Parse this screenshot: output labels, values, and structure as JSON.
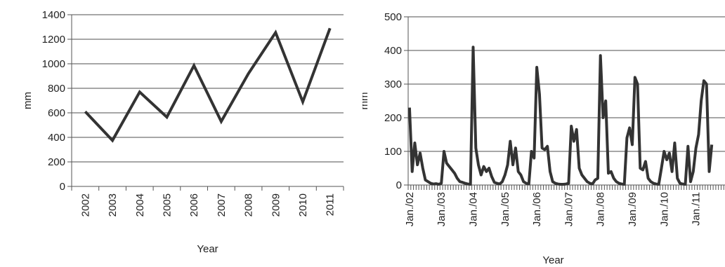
{
  "colors": {
    "line": "#333333",
    "grid": "#8a8a8a",
    "axis": "#555555",
    "text": "#222222",
    "background": "#ffffff"
  },
  "chart_data": [
    {
      "type": "line",
      "title": "",
      "xlabel": "Year",
      "ylabel": "mm",
      "categories": [
        "2002",
        "2003",
        "2004",
        "2005",
        "2006",
        "2007",
        "2008",
        "2009",
        "2010",
        "2011"
      ],
      "series": [
        {
          "values": [
            610,
            375,
            770,
            565,
            985,
            530,
            920,
            1255,
            690,
            1290
          ]
        }
      ],
      "ylim": [
        0,
        1400
      ],
      "yticks": [
        0,
        200,
        400,
        600,
        800,
        1000,
        1200,
        1400
      ],
      "grid": true,
      "legend": "none"
    },
    {
      "type": "line",
      "title": "",
      "xlabel": "Year",
      "ylabel": "mm",
      "x_tick_labels": [
        "Jan./02",
        "Jan./03",
        "Jan./04",
        "Jan./05",
        "Jan./06",
        "Jan./07",
        "Jan./08",
        "Jan./09",
        "Jan./10",
        "Jan./11"
      ],
      "x_start": "2002-01",
      "frequency": "monthly",
      "series": [
        {
          "values": [
            230,
            40,
            125,
            60,
            95,
            50,
            15,
            10,
            5,
            3,
            4,
            2,
            5,
            100,
            65,
            55,
            45,
            35,
            20,
            10,
            8,
            5,
            3,
            2,
            410,
            110,
            60,
            30,
            55,
            40,
            50,
            25,
            8,
            5,
            3,
            10,
            30,
            60,
            130,
            60,
            110,
            40,
            30,
            10,
            5,
            3,
            100,
            80,
            350,
            270,
            110,
            105,
            115,
            40,
            10,
            5,
            3,
            2,
            2,
            3,
            5,
            175,
            130,
            165,
            50,
            30,
            20,
            10,
            5,
            3,
            15,
            20,
            385,
            200,
            250,
            35,
            40,
            20,
            10,
            5,
            3,
            2,
            140,
            170,
            120,
            320,
            300,
            50,
            45,
            70,
            20,
            10,
            5,
            3,
            2,
            50,
            100,
            75,
            95,
            40,
            125,
            20,
            5,
            3,
            2,
            115,
            10,
            40,
            110,
            150,
            250,
            310,
            300,
            40,
            120
          ]
        }
      ],
      "ylim": [
        0,
        500
      ],
      "yticks": [
        0,
        100,
        200,
        300,
        400,
        500
      ],
      "grid": true,
      "legend": "none"
    }
  ]
}
